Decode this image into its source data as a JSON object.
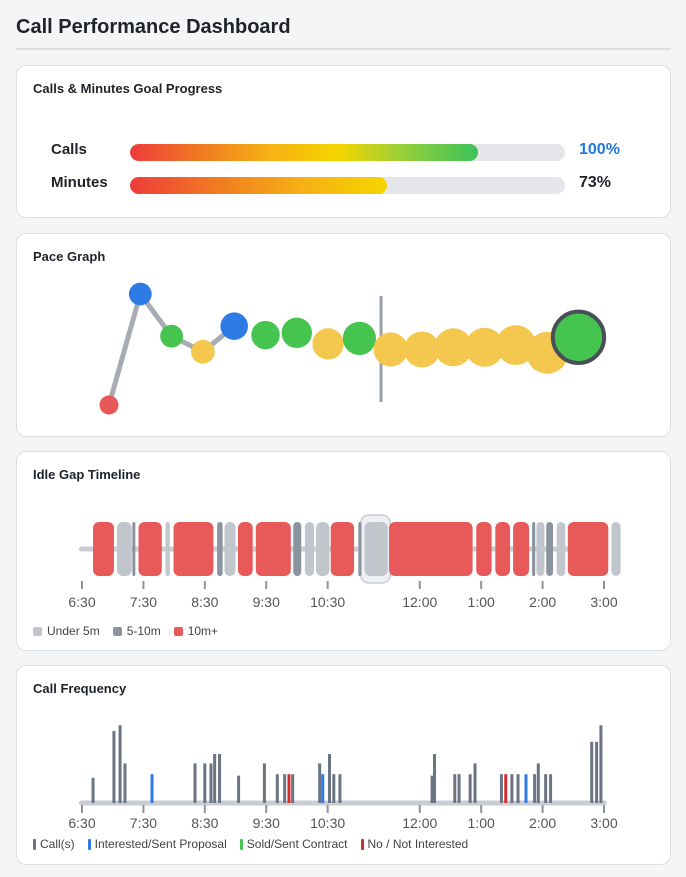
{
  "header": {
    "title": "Call Performance Dashboard"
  },
  "goals": {
    "title": "Calls & Minutes Goal Progress",
    "rows": [
      {
        "label": "Calls",
        "percent_text": "100%",
        "fill_fraction": 0.8,
        "percent_color": "#1f7ad6",
        "gradient": [
          "#ee3b3b",
          "#f07a22",
          "#f6b014",
          "#f4d500",
          "#8fcf3c",
          "#3cc25a"
        ]
      },
      {
        "label": "Minutes",
        "percent_text": "73%",
        "fill_fraction": 0.59,
        "percent_color": "#1f2328",
        "gradient": [
          "#ee3b3b",
          "#f07a22",
          "#f6b014",
          "#f4d500"
        ]
      }
    ]
  },
  "pace": {
    "title": "Pace Graph",
    "colors": {
      "red": "#e85858",
      "blue": "#2f7be6",
      "green": "#45c450",
      "yellow": "#f4c84e",
      "line": "#a7acb3"
    },
    "points": [
      {
        "step": 0,
        "level": 0.0,
        "size": 1,
        "color": "red"
      },
      {
        "step": 1,
        "level": 1.0,
        "size": 1.2,
        "color": "blue"
      },
      {
        "step": 2,
        "level": 0.62,
        "size": 1.2,
        "color": "green"
      },
      {
        "step": 3,
        "level": 0.48,
        "size": 1.25,
        "color": "yellow"
      },
      {
        "step": 4,
        "level": 0.71,
        "size": 1.45,
        "color": "blue"
      },
      {
        "step": 5,
        "level": 0.63,
        "size": 1.5,
        "color": "green"
      },
      {
        "step": 6,
        "level": 0.65,
        "size": 1.6,
        "color": "green"
      },
      {
        "step": 7,
        "level": 0.55,
        "size": 1.65,
        "color": "yellow"
      },
      {
        "step": 8,
        "level": 0.6,
        "size": 1.75,
        "color": "green"
      },
      {
        "step": 9,
        "level": 0.5,
        "size": 1.8,
        "color": "yellow"
      },
      {
        "step": 10,
        "level": 0.5,
        "size": 1.9,
        "color": "yellow"
      },
      {
        "step": 11,
        "level": 0.52,
        "size": 2.0,
        "color": "yellow"
      },
      {
        "step": 12,
        "level": 0.52,
        "size": 2.05,
        "color": "yellow"
      },
      {
        "step": 13,
        "level": 0.54,
        "size": 2.1,
        "color": "yellow"
      },
      {
        "step": 14,
        "level": 0.47,
        "size": 2.2,
        "color": "yellow"
      },
      {
        "step": 15,
        "level": 0.61,
        "size": 2.7,
        "color": "green",
        "current": true
      }
    ],
    "divider_step": 8.5
  },
  "idle": {
    "title": "Idle Gap Timeline",
    "start_hour": 6.5,
    "end_hour": 15.0,
    "ticks": [
      {
        "h": 6.5,
        "label": "6:30"
      },
      {
        "h": 7.5,
        "label": "7:30"
      },
      {
        "h": 8.5,
        "label": "8:30"
      },
      {
        "h": 9.5,
        "label": "9:30"
      },
      {
        "h": 10.5,
        "label": "10:30"
      },
      {
        "h": 12.0,
        "label": "12:00"
      },
      {
        "h": 13.0,
        "label": "1:00"
      },
      {
        "h": 14.0,
        "label": "2:00"
      },
      {
        "h": 15.0,
        "label": "3:00"
      }
    ],
    "colors": {
      "under5": "#c1c6cd",
      "mid": "#8b939e",
      "long": "#e85a5a",
      "track": "#c9cdd3"
    },
    "gaps": [
      {
        "s": 6.68,
        "e": 7.02,
        "t": "long"
      },
      {
        "s": 7.07,
        "e": 7.31,
        "t": "under5"
      },
      {
        "s": 7.32,
        "e": 7.36,
        "t": "mid"
      },
      {
        "s": 7.42,
        "e": 7.8,
        "t": "long"
      },
      {
        "s": 7.86,
        "e": 7.93,
        "t": "under5"
      },
      {
        "s": 7.99,
        "e": 8.64,
        "t": "long"
      },
      {
        "s": 8.7,
        "e": 8.79,
        "t": "mid"
      },
      {
        "s": 8.82,
        "e": 9.0,
        "t": "under5"
      },
      {
        "s": 9.04,
        "e": 9.28,
        "t": "long"
      },
      {
        "s": 9.33,
        "e": 9.9,
        "t": "long"
      },
      {
        "s": 9.94,
        "e": 10.07,
        "t": "mid"
      },
      {
        "s": 10.13,
        "e": 10.28,
        "t": "under5"
      },
      {
        "s": 10.31,
        "e": 10.53,
        "t": "under5"
      },
      {
        "s": 10.55,
        "e": 10.93,
        "t": "long"
      },
      {
        "s": 11.0,
        "e": 11.05,
        "t": "mid"
      },
      {
        "s": 11.1,
        "e": 11.48,
        "t": "under5"
      },
      {
        "s": 11.5,
        "e": 12.86,
        "t": "long"
      },
      {
        "s": 12.92,
        "e": 13.17,
        "t": "long"
      },
      {
        "s": 13.23,
        "e": 13.47,
        "t": "long"
      },
      {
        "s": 13.52,
        "e": 13.78,
        "t": "long"
      },
      {
        "s": 13.83,
        "e": 13.88,
        "t": "mid"
      },
      {
        "s": 13.9,
        "e": 14.03,
        "t": "under5"
      },
      {
        "s": 14.06,
        "e": 14.17,
        "t": "mid"
      },
      {
        "s": 14.23,
        "e": 14.37,
        "t": "under5"
      },
      {
        "s": 14.41,
        "e": 15.07,
        "t": "long"
      },
      {
        "s": 15.12,
        "e": 15.27,
        "t": "under5"
      }
    ],
    "highlight": {
      "s": 11.04,
      "e": 11.52
    },
    "legend": [
      {
        "label": "Under 5m",
        "color": "#c1c6cd"
      },
      {
        "label": "5-10m",
        "color": "#8b939e"
      },
      {
        "label": "10m+",
        "color": "#e85a5a"
      }
    ]
  },
  "freq": {
    "title": "Call Frequency",
    "colors": {
      "call": "#6b7484",
      "interested": "#2f7be6",
      "sold": "#45c450",
      "no": "#d62b2b",
      "track": "#c9cdd3"
    },
    "bars": [
      {
        "h": 6.68,
        "v": 0.35,
        "t": "call"
      },
      {
        "h": 7.02,
        "v": 1.0,
        "t": "call"
      },
      {
        "h": 7.12,
        "v": 1.08,
        "t": "call"
      },
      {
        "h": 7.2,
        "v": 0.55,
        "t": "call"
      },
      {
        "h": 7.64,
        "v": 0.4,
        "t": "interested"
      },
      {
        "h": 8.34,
        "v": 0.55,
        "t": "call"
      },
      {
        "h": 8.5,
        "v": 0.55,
        "t": "call"
      },
      {
        "h": 8.6,
        "v": 0.55,
        "t": "call"
      },
      {
        "h": 8.66,
        "v": 0.68,
        "t": "call"
      },
      {
        "h": 8.74,
        "v": 0.68,
        "t": "call"
      },
      {
        "h": 9.05,
        "v": 0.38,
        "t": "call"
      },
      {
        "h": 9.47,
        "v": 0.55,
        "t": "call"
      },
      {
        "h": 9.68,
        "v": 0.4,
        "t": "call"
      },
      {
        "h": 9.8,
        "v": 0.4,
        "t": "call"
      },
      {
        "h": 9.87,
        "v": 0.4,
        "t": "no"
      },
      {
        "h": 9.93,
        "v": 0.4,
        "t": "call"
      },
      {
        "h": 10.37,
        "v": 0.55,
        "t": "call"
      },
      {
        "h": 10.42,
        "v": 0.4,
        "t": "interested"
      },
      {
        "h": 10.53,
        "v": 0.68,
        "t": "call"
      },
      {
        "h": 10.6,
        "v": 0.4,
        "t": "call"
      },
      {
        "h": 10.7,
        "v": 0.4,
        "t": "call"
      },
      {
        "h": 12.2,
        "v": 0.38,
        "t": "call"
      },
      {
        "h": 12.24,
        "v": 0.68,
        "t": "call"
      },
      {
        "h": 12.57,
        "v": 0.4,
        "t": "call"
      },
      {
        "h": 12.64,
        "v": 0.4,
        "t": "call"
      },
      {
        "h": 12.82,
        "v": 0.4,
        "t": "call"
      },
      {
        "h": 12.9,
        "v": 0.55,
        "t": "call"
      },
      {
        "h": 13.33,
        "v": 0.4,
        "t": "call"
      },
      {
        "h": 13.4,
        "v": 0.4,
        "t": "no"
      },
      {
        "h": 13.5,
        "v": 0.4,
        "t": "call"
      },
      {
        "h": 13.6,
        "v": 0.4,
        "t": "call"
      },
      {
        "h": 13.73,
        "v": 0.4,
        "t": "interested"
      },
      {
        "h": 13.87,
        "v": 0.4,
        "t": "call"
      },
      {
        "h": 13.93,
        "v": 0.55,
        "t": "call"
      },
      {
        "h": 14.05,
        "v": 0.4,
        "t": "call"
      },
      {
        "h": 14.13,
        "v": 0.4,
        "t": "call"
      },
      {
        "h": 14.8,
        "v": 0.85,
        "t": "call"
      },
      {
        "h": 14.88,
        "v": 0.85,
        "t": "call"
      },
      {
        "h": 14.95,
        "v": 1.08,
        "t": "call"
      }
    ],
    "legend": [
      {
        "label": "Call(s)",
        "color": "#6b7484"
      },
      {
        "label": "Interested/Sent Proposal",
        "color": "#2f7be6"
      },
      {
        "label": "Sold/Sent Contract",
        "color": "#45c450"
      },
      {
        "label": "No / Not Interested",
        "color": "#d62b2b"
      }
    ]
  }
}
